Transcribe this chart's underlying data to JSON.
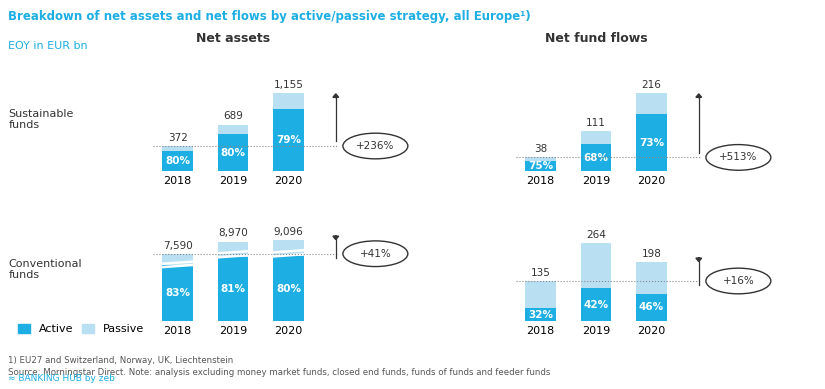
{
  "title": "Breakdown of net assets and net flows by active/passive strategy, all Europe¹)",
  "subtitle": "EOY in EUR bn",
  "years": [
    "2018",
    "2019",
    "2020"
  ],
  "net_assets_sustainable_total": [
    372,
    689,
    1155
  ],
  "net_assets_sustainable_active_pct": [
    80,
    80,
    79
  ],
  "net_assets_conventional_total": [
    7590,
    8970,
    9096
  ],
  "net_assets_conventional_active_pct": [
    83,
    81,
    80
  ],
  "net_flows_sustainable_total": [
    38,
    111,
    216
  ],
  "net_flows_sustainable_active_pct": [
    75,
    68,
    73
  ],
  "net_flows_conventional_total": [
    135,
    264,
    198
  ],
  "net_flows_conventional_active_pct": [
    32,
    42,
    46
  ],
  "colors_active": "#1daee3",
  "colors_passive": "#b8e0f2",
  "color_title": "#1daee3",
  "color_text": "#333333",
  "change_nas": "+236%",
  "change_nac": "+41%",
  "change_nfs": "+513%",
  "change_nfc": "+16%",
  "label_sustainable": "Sustainable\nfunds",
  "label_conventional": "Conventional\nfunds",
  "section_title_left": "Net assets",
  "section_title_right": "Net fund flows",
  "legend_active": "Active",
  "legend_passive": "Passive",
  "footnote1": "1) EU27 and Switzerland, Norway, UK, Liechtenstein",
  "footnote2": "Source: Morningstar Direct. Note: analysis excluding money market funds, closed end funds, funds of funds and feeder funds",
  "logo_text": "≈ BANKING HUB by zeb"
}
